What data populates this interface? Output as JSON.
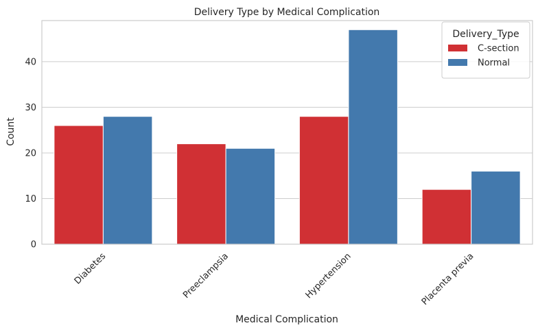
{
  "chart_data": {
    "type": "bar",
    "title": "Delivery Type by Medical Complication",
    "xlabel": "Medical Complication",
    "ylabel": "Count",
    "categories": [
      "Diabetes",
      "Preeclampsia",
      "Hypertension",
      "Placenta previa"
    ],
    "series": [
      {
        "name": "C-section",
        "values": [
          26,
          22,
          28,
          12
        ],
        "color": "#d03034"
      },
      {
        "name": "Normal",
        "values": [
          28,
          21,
          47,
          16
        ],
        "color": "#4379ad"
      }
    ],
    "ylim": [
      0,
      49
    ],
    "yticks": [
      "0",
      "10",
      "20",
      "30",
      "40"
    ],
    "grid": "horizontal",
    "legend": {
      "title": "Delivery_Type",
      "placement": "top-right"
    }
  }
}
